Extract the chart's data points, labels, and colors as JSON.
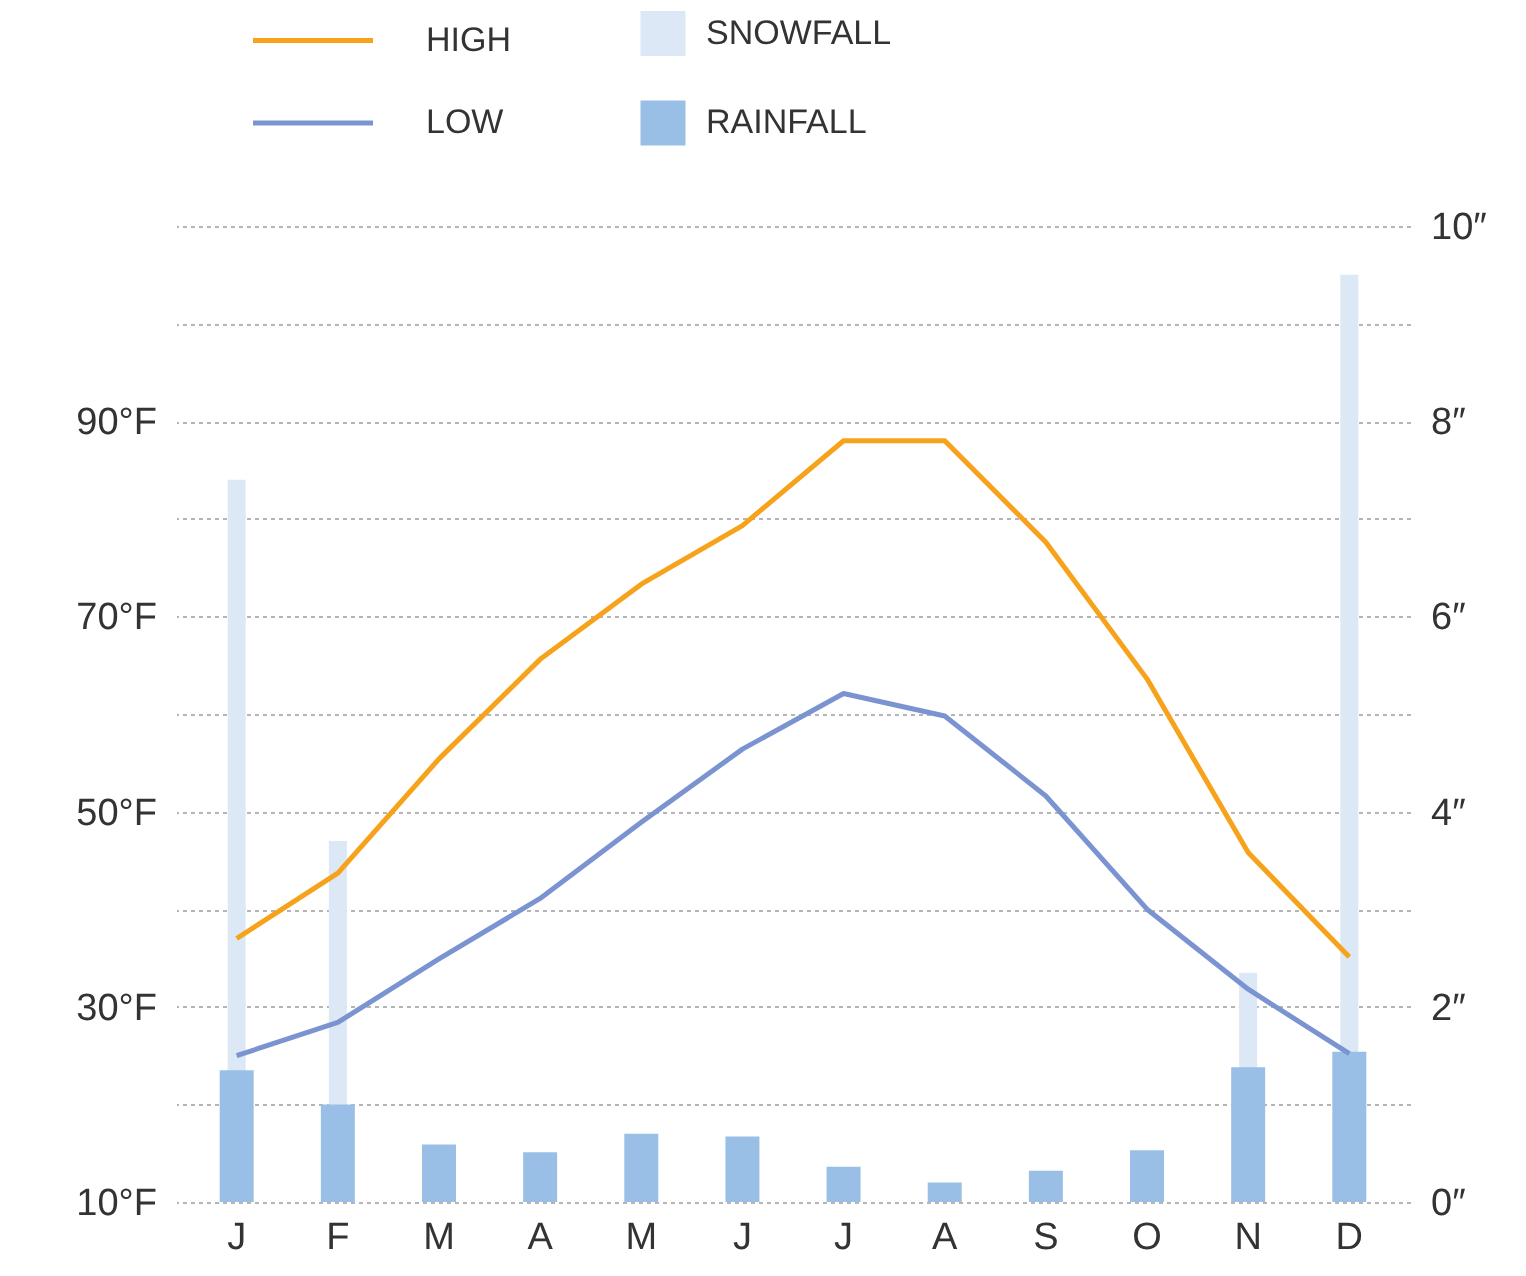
{
  "chart_data": {
    "type": "line",
    "categories": [
      "J",
      "F",
      "M",
      "A",
      "M",
      "J",
      "J",
      "A",
      "S",
      "O",
      "N",
      "D"
    ],
    "series": [
      {
        "name": "SNOWFALL",
        "type": "bar",
        "axis": "y2",
        "color": "#dce8f5",
        "values": [
          7.4,
          3.7,
          0,
          0,
          0,
          0,
          0,
          0,
          0,
          0,
          2.35,
          9.5
        ]
      },
      {
        "name": "RAINFALL",
        "type": "bar",
        "axis": "y2",
        "color": "#99bfe6",
        "values": [
          1.35,
          1.0,
          0.59,
          0.51,
          0.7,
          0.67,
          0.36,
          0.2,
          0.32,
          0.53,
          1.38,
          1.54
        ]
      },
      {
        "name": "HIGH",
        "color": "#f7a21b",
        "values": [
          37,
          43.7,
          55.4,
          65.6,
          73.3,
          79.3,
          88,
          88,
          77.6,
          63.6,
          45.8,
          35.1
        ]
      },
      {
        "name": "LOW",
        "color": "#7b94d1",
        "values": [
          25,
          28.4,
          34.9,
          41.1,
          48.9,
          56.4,
          62.1,
          59.8,
          51.6,
          40,
          31.8,
          25.2
        ]
      }
    ],
    "ylim": [
      10,
      110
    ],
    "yticks": [
      {
        "value": 10,
        "label": "10°F"
      },
      {
        "value": 30,
        "label": "30°F"
      },
      {
        "value": 50,
        "label": "50°F"
      },
      {
        "value": 70,
        "label": "70°F"
      },
      {
        "value": 90,
        "label": "90°F"
      }
    ],
    "y2lim": [
      0,
      10
    ],
    "y2ticks": [
      {
        "value": 0,
        "label": "0″"
      },
      {
        "value": 1,
        "label": null
      },
      {
        "value": 2,
        "label": "2″"
      },
      {
        "value": 3,
        "label": null
      },
      {
        "value": 4,
        "label": "4″"
      },
      {
        "value": 5,
        "label": null
      },
      {
        "value": 6,
        "label": "6″"
      },
      {
        "value": 7,
        "label": null
      },
      {
        "value": 8,
        "label": "8″"
      },
      {
        "value": 9,
        "label": null
      },
      {
        "value": 10,
        "label": "10″"
      }
    ],
    "grid": true,
    "legend": "top",
    "marker": "none",
    "line_style": "solid"
  }
}
